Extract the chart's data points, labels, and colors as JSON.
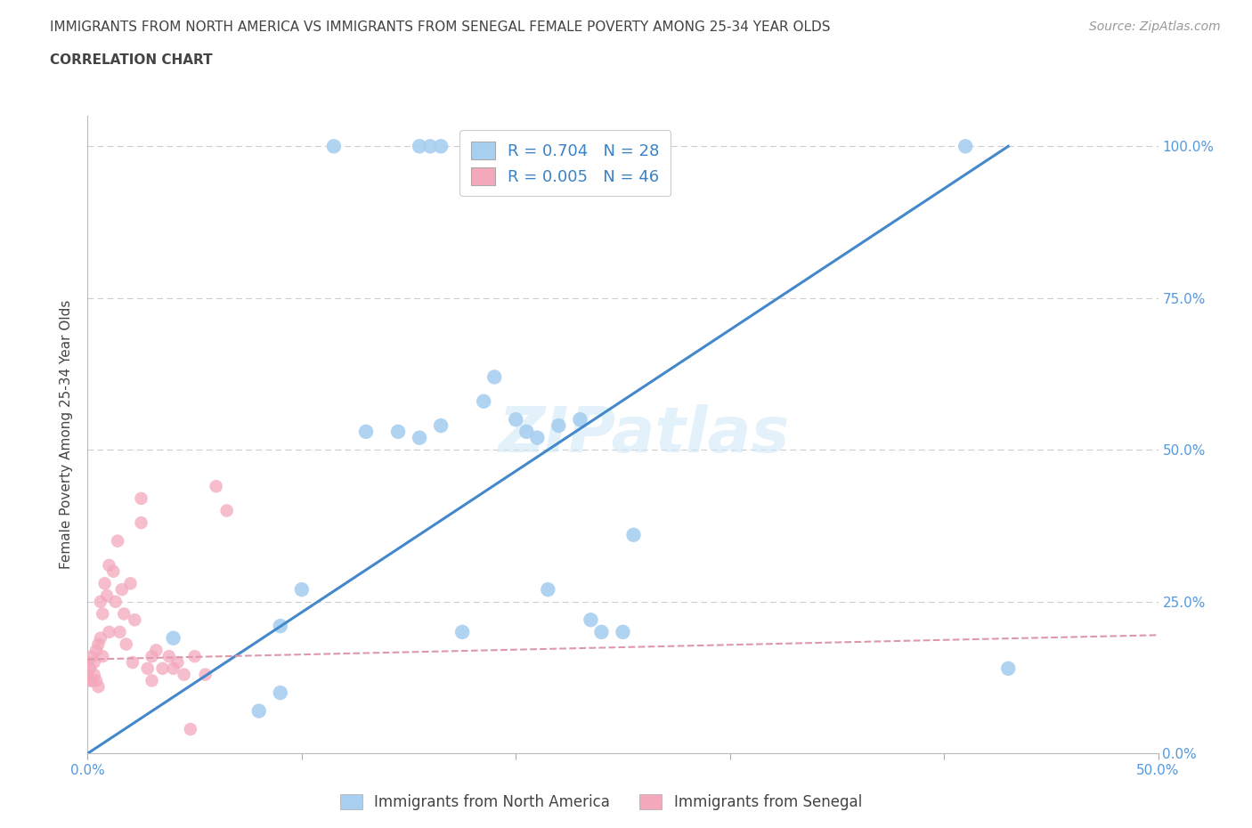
{
  "title": "IMMIGRANTS FROM NORTH AMERICA VS IMMIGRANTS FROM SENEGAL FEMALE POVERTY AMONG 25-34 YEAR OLDS",
  "subtitle": "CORRELATION CHART",
  "source": "Source: ZipAtlas.com",
  "ylabel": "Female Poverty Among 25-34 Year Olds",
  "watermark": "ZIPatlas",
  "xlim": [
    0,
    0.5
  ],
  "ylim": [
    0,
    1.05
  ],
  "blue_R": 0.704,
  "blue_N": 28,
  "pink_R": 0.005,
  "pink_N": 46,
  "blue_color": "#a8cff0",
  "pink_color": "#f4a8bc",
  "blue_line_color": "#4488cc",
  "pink_line_color": "#dd99aa",
  "grid_color": "#cccccc",
  "title_color": "#444444",
  "axis_label_color": "#5599dd",
  "legend_label_color": "#3a82c4",
  "blue_scatter_x": [
    0.115,
    0.155,
    0.16,
    0.165,
    0.04,
    0.08,
    0.09,
    0.1,
    0.13,
    0.145,
    0.155,
    0.165,
    0.175,
    0.185,
    0.19,
    0.2,
    0.205,
    0.21,
    0.215,
    0.22,
    0.23,
    0.235,
    0.24,
    0.25,
    0.255,
    0.41,
    0.43,
    0.09
  ],
  "blue_scatter_y": [
    1.0,
    1.0,
    1.0,
    1.0,
    0.19,
    0.07,
    0.21,
    0.27,
    0.53,
    0.53,
    0.52,
    0.54,
    0.2,
    0.58,
    0.62,
    0.55,
    0.53,
    0.52,
    0.27,
    0.54,
    0.55,
    0.22,
    0.2,
    0.2,
    0.36,
    1.0,
    0.14,
    0.1
  ],
  "pink_scatter_x": [
    0.0,
    0.0,
    0.001,
    0.001,
    0.002,
    0.002,
    0.003,
    0.003,
    0.004,
    0.004,
    0.005,
    0.005,
    0.006,
    0.006,
    0.007,
    0.007,
    0.008,
    0.009,
    0.01,
    0.01,
    0.012,
    0.013,
    0.014,
    0.015,
    0.016,
    0.017,
    0.018,
    0.02,
    0.021,
    0.022,
    0.025,
    0.025,
    0.028,
    0.03,
    0.03,
    0.032,
    0.035,
    0.038,
    0.04,
    0.042,
    0.045,
    0.048,
    0.05,
    0.055,
    0.06,
    0.065
  ],
  "pink_scatter_y": [
    0.15,
    0.13,
    0.14,
    0.12,
    0.16,
    0.12,
    0.15,
    0.13,
    0.17,
    0.12,
    0.18,
    0.11,
    0.25,
    0.19,
    0.23,
    0.16,
    0.28,
    0.26,
    0.31,
    0.2,
    0.3,
    0.25,
    0.35,
    0.2,
    0.27,
    0.23,
    0.18,
    0.28,
    0.15,
    0.22,
    0.42,
    0.38,
    0.14,
    0.16,
    0.12,
    0.17,
    0.14,
    0.16,
    0.14,
    0.15,
    0.13,
    0.04,
    0.16,
    0.13,
    0.44,
    0.4
  ],
  "blue_line_x": [
    0.0,
    0.43
  ],
  "blue_line_y": [
    0.0,
    1.0
  ],
  "pink_line_x": [
    0.0,
    0.5
  ],
  "pink_line_y": [
    0.155,
    0.195
  ]
}
